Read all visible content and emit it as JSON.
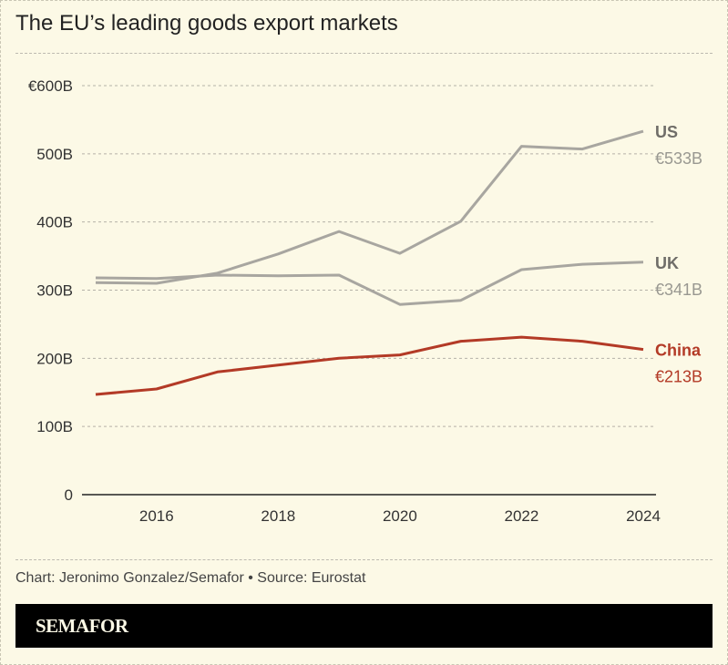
{
  "title": "The EU’s leading goods export markets",
  "credit": "Chart: Jeronimo Gonzalez/Semafor • Source: Eurostat",
  "brand": "SEMAFOR",
  "chart_data": {
    "type": "line",
    "title": "The EU’s leading goods export markets",
    "x": [
      2015,
      2016,
      2017,
      2018,
      2019,
      2020,
      2021,
      2022,
      2023,
      2024
    ],
    "xticks": [
      "2016",
      "2018",
      "2020",
      "2022",
      "2024"
    ],
    "xlim": [
      2015,
      2024
    ],
    "ylim": [
      0,
      600
    ],
    "yticks": [
      0,
      100,
      200,
      300,
      400,
      500,
      600
    ],
    "ytick_labels": [
      "0",
      "100B",
      "200B",
      "300B",
      "400B",
      "500B",
      "€600B"
    ],
    "grid": true,
    "series": [
      {
        "name": "US",
        "end_label": "€533B",
        "color": "#a8a6a0",
        "label_color": "#6f6d68",
        "value_color": "#999891",
        "values": [
          311,
          310,
          325,
          353,
          386,
          354,
          401,
          511,
          507,
          533
        ]
      },
      {
        "name": "UK",
        "end_label": "€341B",
        "color": "#a8a6a0",
        "label_color": "#6f6d68",
        "value_color": "#999891",
        "values": [
          318,
          317,
          322,
          321,
          322,
          279,
          285,
          330,
          338,
          341
        ]
      },
      {
        "name": "China",
        "end_label": "€213B",
        "color": "#b33a26",
        "label_color": "#b33a26",
        "value_color": "#b33a26",
        "values": [
          147,
          155,
          180,
          190,
          200,
          205,
          225,
          231,
          225,
          213
        ]
      }
    ]
  }
}
